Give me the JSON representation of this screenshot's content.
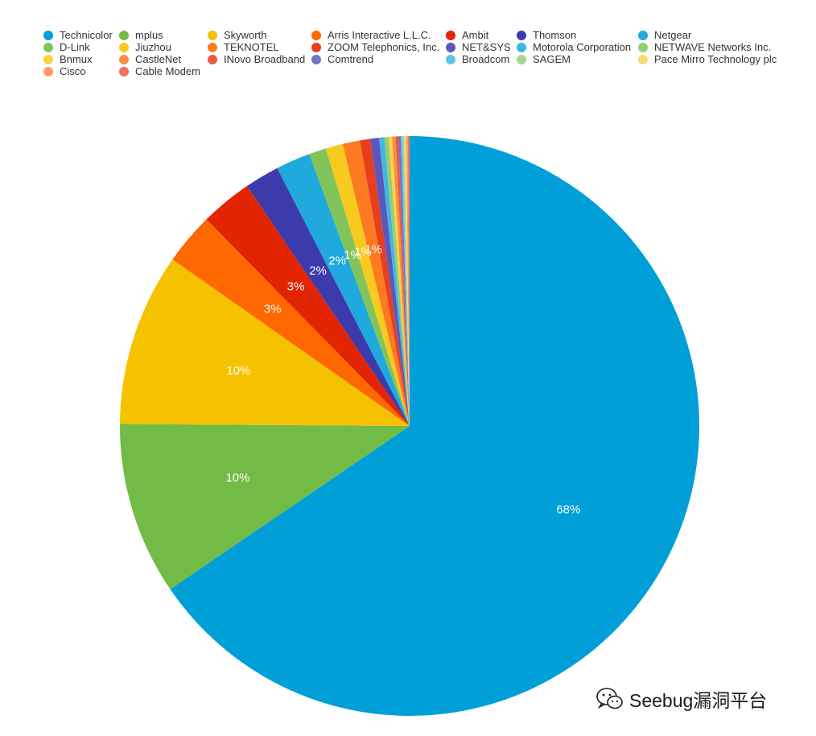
{
  "chart_data": {
    "type": "pie",
    "legend_position": "top",
    "slices": [
      {
        "name": "Technicolor",
        "value": 68,
        "label": "68%",
        "color": "#009fd8"
      },
      {
        "name": "mplus",
        "value": 10,
        "label": "10%",
        "color": "#72bb46"
      },
      {
        "name": "Skyworth",
        "value": 10,
        "label": "10%",
        "color": "#f6c200"
      },
      {
        "name": "Arris Interactive L.L.C.",
        "value": 3,
        "label": "3%",
        "color": "#fe6800"
      },
      {
        "name": "Ambit",
        "value": 3,
        "label": "3%",
        "color": "#e22500"
      },
      {
        "name": "Thomson",
        "value": 2,
        "label": "2%",
        "color": "#3c3bab"
      },
      {
        "name": "Netgear",
        "value": 2,
        "label": "2%",
        "color": "#1fa9dc"
      },
      {
        "name": "D-Link",
        "value": 1,
        "label": "1%",
        "color": "#82c45a"
      },
      {
        "name": "Jiuzhou",
        "value": 1,
        "label": "1%",
        "color": "#f8c91f"
      },
      {
        "name": "TEKNOTEL",
        "value": 1,
        "label": "1%",
        "color": "#fd7a21"
      },
      {
        "name": "ZOOM Telephonics, Inc.",
        "value": 0.6,
        "label": "",
        "color": "#e53f1f"
      },
      {
        "name": "NET&SYS",
        "value": 0.5,
        "label": "",
        "color": "#5a58b9"
      },
      {
        "name": "Motorola Corporation",
        "value": 0.3,
        "label": "",
        "color": "#3fb7e2"
      },
      {
        "name": "NETWAVE Networks Inc.",
        "value": 0.25,
        "label": "",
        "color": "#97cd75"
      },
      {
        "name": "Bnmux",
        "value": 0.2,
        "label": "",
        "color": "#f9d447"
      },
      {
        "name": "CastleNet",
        "value": 0.2,
        "label": "",
        "color": "#fd8c44"
      },
      {
        "name": "INovo Broadband",
        "value": 0.15,
        "label": "",
        "color": "#e85a40"
      },
      {
        "name": "Comtrend",
        "value": 0.15,
        "label": "",
        "color": "#7574c6"
      },
      {
        "name": "Broadcom",
        "value": 0.1,
        "label": "",
        "color": "#62c4e8"
      },
      {
        "name": "SAGEM",
        "value": 0.1,
        "label": "",
        "color": "#aad68f"
      },
      {
        "name": "Pace Mirro Technology plc",
        "value": 0.1,
        "label": "",
        "color": "#fadc6f"
      },
      {
        "name": "Cisco",
        "value": 0.1,
        "label": "",
        "color": "#fe9e66"
      },
      {
        "name": "Cable Modem",
        "value": 0.1,
        "label": "",
        "color": "#eb7560"
      }
    ]
  },
  "watermark": {
    "text": "Seebug漏洞平台",
    "icon": "wechat-icon"
  }
}
